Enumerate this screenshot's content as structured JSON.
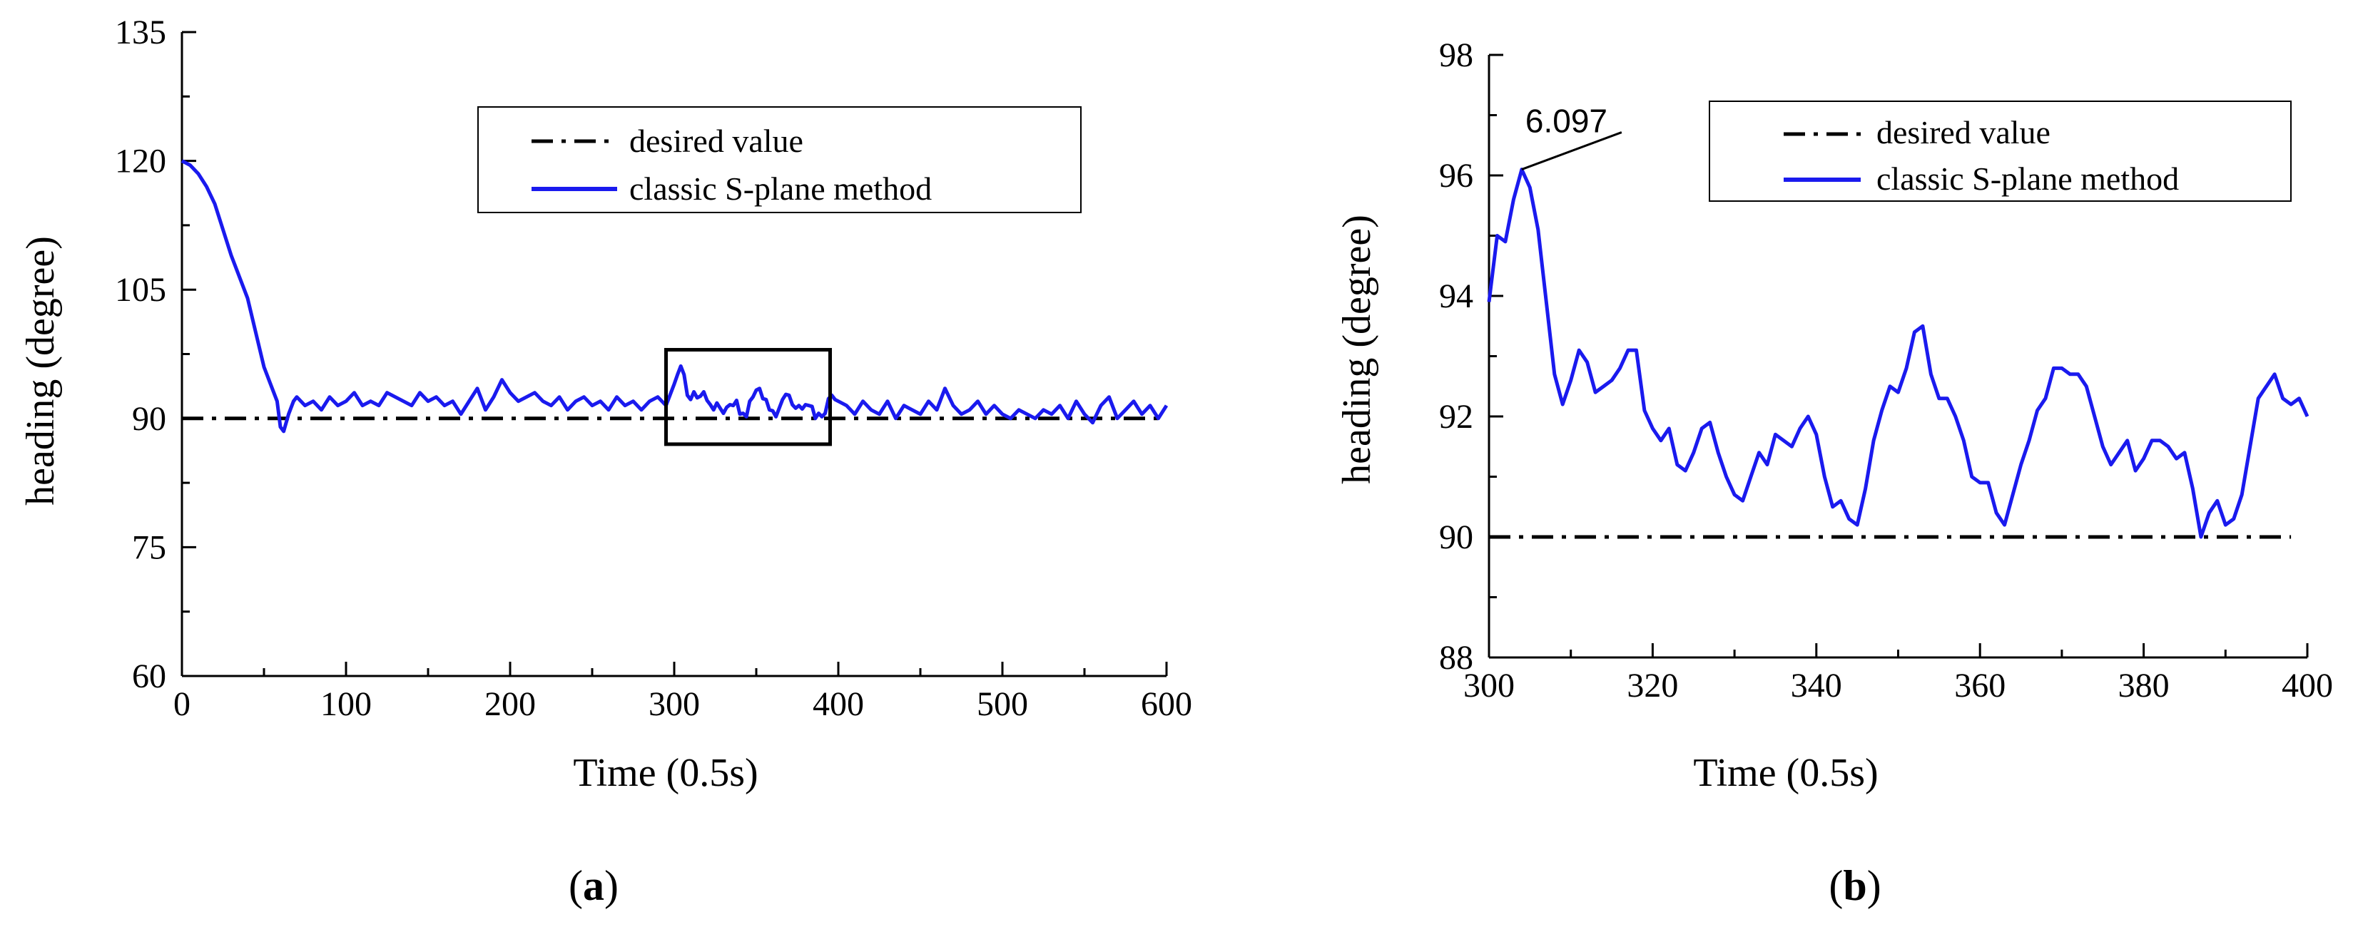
{
  "colors": {
    "desired": "#000000",
    "series": "#1a1aee",
    "axis": "#000000"
  },
  "chart_data": [
    {
      "type": "line",
      "panel_label_parts": [
        "(",
        "a",
        ")"
      ],
      "xlabel": "Time (0.5s)",
      "ylabel": "heading (degree)",
      "xlim": [
        0,
        600
      ],
      "ylim": [
        60,
        135
      ],
      "xticks": [
        0,
        100,
        200,
        300,
        400,
        500,
        600
      ],
      "yticks": [
        60,
        75,
        90,
        105,
        120,
        135
      ],
      "legend": {
        "position": "top-right",
        "entries": [
          "desired value",
          "classic S-plane method"
        ]
      },
      "zoom_box": {
        "x": [
          295,
          395
        ],
        "y": [
          87,
          98
        ]
      },
      "series": [
        {
          "name": "desired value",
          "style": "dash-dot",
          "x": [
            0,
            600
          ],
          "y": [
            90,
            90
          ]
        },
        {
          "name": "classic S-plane method",
          "style": "solid",
          "x": [
            0,
            5,
            10,
            15,
            20,
            25,
            30,
            35,
            40,
            45,
            50,
            55,
            58,
            60,
            62,
            65,
            68,
            70,
            75,
            80,
            85,
            90,
            95,
            100,
            105,
            110,
            115,
            120,
            125,
            130,
            135,
            140,
            145,
            150,
            155,
            160,
            165,
            170,
            175,
            180,
            185,
            190,
            195,
            200,
            205,
            210,
            215,
            220,
            225,
            230,
            235,
            240,
            245,
            250,
            255,
            260,
            265,
            270,
            275,
            280,
            285,
            290,
            295,
            300,
            302,
            304,
            306,
            308,
            310,
            312,
            314,
            316,
            318,
            320,
            322,
            324,
            326,
            328,
            330,
            332,
            334,
            336,
            338,
            340,
            342,
            344,
            346,
            348,
            350,
            352,
            354,
            356,
            358,
            360,
            362,
            364,
            366,
            368,
            370,
            372,
            374,
            376,
            378,
            380,
            382,
            384,
            386,
            388,
            390,
            392,
            394,
            396,
            398,
            400,
            405,
            410,
            415,
            420,
            425,
            430,
            435,
            440,
            445,
            450,
            455,
            460,
            465,
            470,
            475,
            480,
            485,
            490,
            495,
            500,
            505,
            510,
            515,
            520,
            525,
            530,
            535,
            540,
            545,
            550,
            555,
            560,
            565,
            570,
            575,
            580,
            585,
            590,
            595,
            600
          ],
          "y": [
            120,
            119.5,
            118.5,
            117,
            115,
            112,
            109,
            106.5,
            104,
            100,
            96,
            93.5,
            92,
            89,
            88.5,
            90.5,
            92,
            92.5,
            91.5,
            92,
            91,
            92.5,
            91.5,
            92,
            93,
            91.5,
            92,
            91.5,
            93,
            92.5,
            92,
            91.5,
            93,
            92,
            92.5,
            91.5,
            92,
            90.5,
            92,
            93.5,
            91,
            92.5,
            94.5,
            93,
            92,
            92.5,
            93,
            92,
            91.5,
            92.5,
            91,
            92,
            92.5,
            91.5,
            92,
            91,
            92.5,
            91.5,
            92,
            91,
            92,
            92.5,
            91.5,
            94,
            95.1,
            96.1,
            95.1,
            92.7,
            92.2,
            93.1,
            92.4,
            92.6,
            93.1,
            92.1,
            91.6,
            91.0,
            91.8,
            91.2,
            90.6,
            91.3,
            91.6,
            91.5,
            92.1,
            90.5,
            90.6,
            90.2,
            92.0,
            92.5,
            93.3,
            93.5,
            92.3,
            92.2,
            91.0,
            90.9,
            90.2,
            91.2,
            92.2,
            92.8,
            92.7,
            91.6,
            91.2,
            91.5,
            91.1,
            91.6,
            91.5,
            91.4,
            90.0,
            90.6,
            90.2,
            90.6,
            92.3,
            92.7,
            92.2,
            92.0,
            91.5,
            90.5,
            92,
            91,
            90.5,
            92,
            90,
            91.5,
            91,
            90.5,
            92,
            91,
            93.5,
            91.5,
            90.5,
            91,
            92,
            90.5,
            91.5,
            90.5,
            90,
            91,
            90.5,
            90,
            91,
            90.5,
            91.5,
            90,
            92,
            90.5,
            89.5,
            91.5,
            92.5,
            90,
            91,
            92,
            90.5,
            91.5,
            90,
            91.5
          ]
        }
      ]
    },
    {
      "type": "line",
      "panel_label_parts": [
        "(",
        "b",
        ")"
      ],
      "xlabel": "Time (0.5s)",
      "ylabel": "heading (degree)",
      "xlim": [
        300,
        400
      ],
      "ylim": [
        88,
        98
      ],
      "xticks": [
        300,
        320,
        340,
        360,
        380,
        400
      ],
      "yticks": [
        88,
        90,
        92,
        94,
        96,
        98
      ],
      "legend": {
        "position": "top-right",
        "entries": [
          "desired value",
          "classic S-plane method"
        ]
      },
      "annotation": {
        "text": "6.097",
        "x": 304,
        "y": 96.1
      },
      "series": [
        {
          "name": "desired value",
          "style": "dash-dot",
          "x": [
            300,
            398
          ],
          "y": [
            90,
            90
          ]
        },
        {
          "name": "classic S-plane method",
          "style": "solid",
          "x": [
            300,
            301,
            302,
            303,
            304,
            305,
            306,
            307,
            308,
            309,
            310,
            311,
            312,
            313,
            314,
            315,
            316,
            317,
            318,
            319,
            320,
            321,
            322,
            323,
            324,
            325,
            326,
            327,
            328,
            329,
            330,
            331,
            332,
            333,
            334,
            335,
            336,
            337,
            338,
            339,
            340,
            341,
            342,
            343,
            344,
            345,
            346,
            347,
            348,
            349,
            350,
            351,
            352,
            353,
            354,
            355,
            356,
            357,
            358,
            359,
            360,
            361,
            362,
            363,
            364,
            365,
            366,
            367,
            368,
            369,
            370,
            371,
            372,
            373,
            374,
            375,
            376,
            377,
            378,
            379,
            380,
            381,
            382,
            383,
            384,
            385,
            386,
            387,
            388,
            389,
            390,
            391,
            392,
            393,
            394,
            395,
            396,
            397,
            398,
            399,
            400
          ],
          "y": [
            93.9,
            95.0,
            94.9,
            95.6,
            96.1,
            95.8,
            95.1,
            93.9,
            92.7,
            92.2,
            92.6,
            93.1,
            92.9,
            92.4,
            92.5,
            92.6,
            92.8,
            93.1,
            93.1,
            92.1,
            91.8,
            91.6,
            91.8,
            91.2,
            91.1,
            91.4,
            91.8,
            91.9,
            91.4,
            91.0,
            90.7,
            90.6,
            91.0,
            91.4,
            91.2,
            91.7,
            91.6,
            91.5,
            91.8,
            92.0,
            91.7,
            91.0,
            90.5,
            90.6,
            90.3,
            90.2,
            90.8,
            91.6,
            92.1,
            92.5,
            92.4,
            92.8,
            93.4,
            93.5,
            92.7,
            92.3,
            92.3,
            92.0,
            91.6,
            91.0,
            90.9,
            90.9,
            90.4,
            90.2,
            90.7,
            91.2,
            91.6,
            92.1,
            92.3,
            92.8,
            92.8,
            92.7,
            92.7,
            92.5,
            92.0,
            91.5,
            91.2,
            91.4,
            91.6,
            91.1,
            91.3,
            91.6,
            91.6,
            91.5,
            91.3,
            91.4,
            90.8,
            90.0,
            90.4,
            90.6,
            90.2,
            90.3,
            90.7,
            91.5,
            92.3,
            92.5,
            92.7,
            92.3,
            92.2,
            92.3,
            92.0
          ]
        }
      ]
    }
  ]
}
